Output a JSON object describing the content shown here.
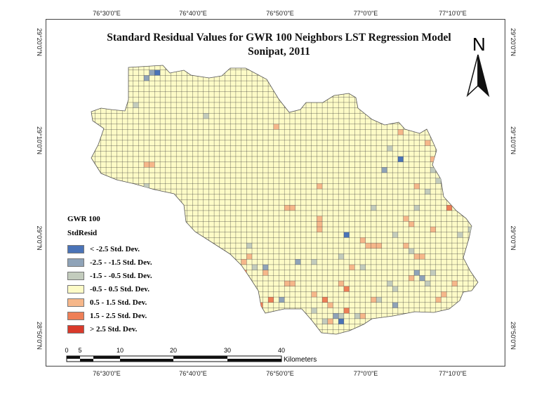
{
  "map": {
    "title_line1": "Standard Residual Values for GWR 100 Neighbors LST Regression Model",
    "title_line2": "Sonipat, 2011",
    "north_label": "N",
    "coords": {
      "top": [
        "76°30'0\"E",
        "76°40'0\"E",
        "76°50'0\"E",
        "77°0'0\"E",
        "77°10'0\"E"
      ],
      "bottom": [
        "76°30'0\"E",
        "76°40'0\"E",
        "76°50'0\"E",
        "77°0'0\"E",
        "77°10'0\"E"
      ],
      "left": [
        "29°20'0\"N",
        "29°10'0\"N",
        "29°0'0\"N",
        "28°50'0\"N"
      ],
      "right": [
        "29°20'0\"N",
        "29°10'0\"N",
        "29°0'0\"N",
        "28°50'0\"N"
      ]
    },
    "colors": {
      "lt_neg2_5": "#4a73b7",
      "neg2_5_neg1_5": "#8fa3b8",
      "neg1_5_neg0_5": "#c3ccbd",
      "neg0_5_0_5": "#fdfbc7",
      "p0_5_1_5": "#f6b78a",
      "p1_5_2_5": "#ee7f57",
      "gt2_5": "#d93a2b",
      "grid_line": "#3a3a3a"
    }
  },
  "legend": {
    "title1": "GWR 100",
    "title2": "StdResid",
    "items": [
      {
        "label": "< -2.5 Std. Dev.",
        "color": "#4a73b7"
      },
      {
        "label": "-2.5 - -1.5 Std. Dev.",
        "color": "#8fa3b8"
      },
      {
        "label": "-1.5 - -0.5 Std. Dev.",
        "color": "#c3ccbd"
      },
      {
        "label": "-0.5 - 0.5 Std. Dev.",
        "color": "#fdfbc7"
      },
      {
        "label": "0.5 - 1.5 Std. Dev.",
        "color": "#f6b78a"
      },
      {
        "label": "1.5 - 2.5 Std. Dev.",
        "color": "#ee7f57"
      },
      {
        "label": "> 2.5 Std. Dev.",
        "color": "#d93a2b"
      }
    ]
  },
  "scalebar": {
    "ticks": [
      "0",
      "5",
      "10",
      "20",
      "30",
      "40"
    ],
    "unit": "Kilometers"
  }
}
